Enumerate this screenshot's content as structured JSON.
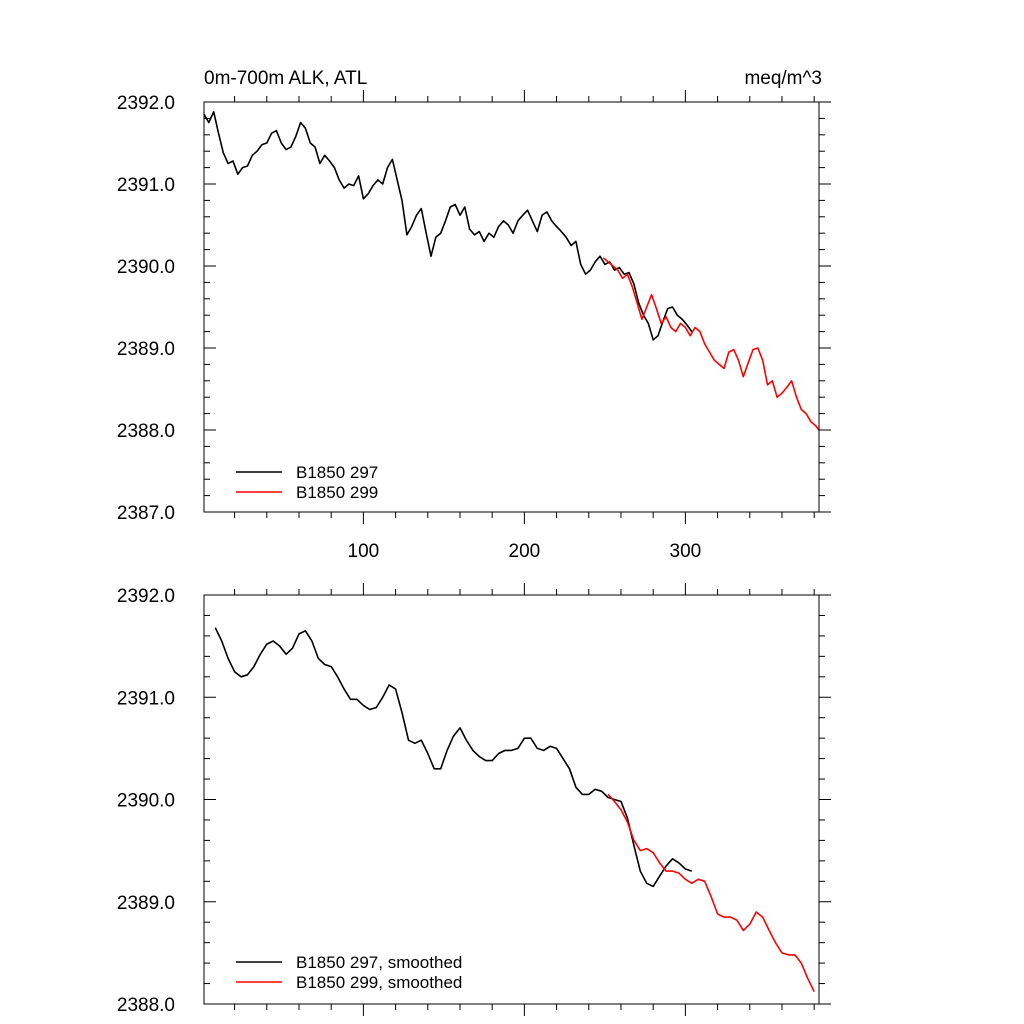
{
  "chart_data": [
    {
      "type": "line",
      "title_left": "0m-700m ALK, ATL",
      "title_right": "meq/m^3",
      "xlim": [
        1,
        383
      ],
      "ylim": [
        2387.0,
        2392.0
      ],
      "x_ticks": [
        100,
        200,
        300
      ],
      "x_tick_labels": [
        "100",
        "200",
        "300"
      ],
      "y_ticks": [
        2387,
        2388,
        2389,
        2390,
        2391,
        2392
      ],
      "y_tick_labels": [
        "2387.0",
        "2388.0",
        "2389.0",
        "2390.0",
        "2391.0",
        "2392.0"
      ],
      "legend": [
        "B1850 297",
        "B1850 299"
      ],
      "legend_position": "bottom-left",
      "series": [
        {
          "name": "B1850 297",
          "color": "#000000",
          "x": [
            1,
            4,
            7,
            10,
            13,
            16,
            19,
            22,
            25,
            28,
            31,
            34,
            37,
            40,
            43,
            46,
            49,
            52,
            55,
            58,
            61,
            64,
            67,
            70,
            73,
            76,
            79,
            82,
            85,
            88,
            91,
            94,
            97,
            100,
            103,
            106,
            109,
            112,
            115,
            118,
            121,
            124,
            127,
            130,
            133,
            136,
            139,
            142,
            145,
            148,
            151,
            154,
            157,
            160,
            163,
            166,
            169,
            172,
            175,
            178,
            181,
            184,
            187,
            190,
            193,
            196,
            199,
            202,
            205,
            208,
            211,
            214,
            217,
            220,
            223,
            226,
            229,
            232,
            235,
            238,
            241,
            244,
            247,
            250,
            253,
            256,
            259,
            262,
            265,
            268,
            271,
            274,
            277,
            280,
            283,
            286,
            289,
            292,
            295,
            298,
            301,
            304
          ],
          "y": [
            2391.85,
            2391.75,
            2391.88,
            2391.62,
            2391.38,
            2391.25,
            2391.28,
            2391.12,
            2391.2,
            2391.22,
            2391.35,
            2391.4,
            2391.48,
            2391.5,
            2391.62,
            2391.65,
            2391.5,
            2391.42,
            2391.45,
            2391.58,
            2391.75,
            2391.68,
            2391.5,
            2391.45,
            2391.25,
            2391.35,
            2391.28,
            2391.2,
            2391.05,
            2390.95,
            2391.0,
            2390.98,
            2391.1,
            2390.82,
            2390.88,
            2390.98,
            2391.05,
            2391.0,
            2391.2,
            2391.3,
            2391.05,
            2390.8,
            2390.38,
            2390.48,
            2390.62,
            2390.7,
            2390.4,
            2390.12,
            2390.35,
            2390.4,
            2390.55,
            2390.72,
            2390.75,
            2390.62,
            2390.72,
            2390.45,
            2390.38,
            2390.42,
            2390.3,
            2390.4,
            2390.35,
            2390.48,
            2390.55,
            2390.5,
            2390.4,
            2390.55,
            2390.62,
            2390.68,
            2390.55,
            2390.42,
            2390.62,
            2390.66,
            2390.55,
            2390.48,
            2390.42,
            2390.35,
            2390.25,
            2390.3,
            2390.02,
            2389.9,
            2389.95,
            2390.05,
            2390.12,
            2390.02,
            2390.05,
            2389.95,
            2389.98,
            2389.9,
            2389.92,
            2389.78,
            2389.55,
            2389.4,
            2389.3,
            2389.1,
            2389.15,
            2389.32,
            2389.48,
            2389.5,
            2389.4,
            2389.35,
            2389.28,
            2389.2
          ]
        },
        {
          "name": "B1850 299",
          "color": "#ff0000",
          "x": [
            249,
            252,
            255,
            258,
            261,
            264,
            267,
            270,
            273,
            276,
            279,
            282,
            285,
            288,
            291,
            294,
            297,
            300,
            303,
            306,
            309,
            312,
            315,
            318,
            321,
            324,
            327,
            330,
            333,
            336,
            339,
            342,
            345,
            348,
            351,
            354,
            357,
            360,
            363,
            366,
            369,
            372,
            375,
            378,
            381,
            383
          ],
          "y": [
            2390.1,
            2390.05,
            2390.0,
            2389.95,
            2389.85,
            2389.9,
            2389.75,
            2389.55,
            2389.35,
            2389.5,
            2389.65,
            2389.48,
            2389.3,
            2389.38,
            2389.25,
            2389.2,
            2389.3,
            2389.25,
            2389.15,
            2389.25,
            2389.2,
            2389.05,
            2388.95,
            2388.85,
            2388.8,
            2388.75,
            2388.95,
            2388.98,
            2388.85,
            2388.65,
            2388.82,
            2388.98,
            2389.0,
            2388.85,
            2388.55,
            2388.6,
            2388.4,
            2388.45,
            2388.52,
            2388.6,
            2388.4,
            2388.25,
            2388.2,
            2388.1,
            2388.05,
            2388.0
          ]
        }
      ]
    },
    {
      "type": "line",
      "xlim": [
        1,
        383
      ],
      "ylim": [
        2388.0,
        2392.0
      ],
      "x_ticks": [
        100,
        200,
        300
      ],
      "y_ticks": [
        2388,
        2389,
        2390,
        2391,
        2392
      ],
      "y_tick_labels": [
        "2388.0",
        "2389.0",
        "2390.0",
        "2391.0",
        "2392.0"
      ],
      "legend": [
        "B1850 297, smoothed",
        "B1850 299, smoothed"
      ],
      "legend_position": "bottom-left",
      "series": [
        {
          "name": "B1850 297, smoothed",
          "color": "#000000",
          "x": [
            8,
            12,
            16,
            20,
            24,
            28,
            32,
            36,
            40,
            44,
            48,
            52,
            56,
            60,
            64,
            68,
            72,
            76,
            80,
            84,
            88,
            92,
            96,
            100,
            104,
            108,
            112,
            116,
            120,
            124,
            128,
            132,
            136,
            140,
            144,
            148,
            152,
            156,
            160,
            164,
            168,
            172,
            176,
            180,
            184,
            188,
            192,
            196,
            200,
            204,
            208,
            212,
            216,
            220,
            224,
            228,
            232,
            236,
            240,
            244,
            248,
            252,
            256,
            260,
            264,
            268,
            272,
            276,
            280,
            284,
            288,
            292,
            296,
            300,
            304
          ],
          "y": [
            2391.68,
            2391.55,
            2391.38,
            2391.25,
            2391.2,
            2391.22,
            2391.3,
            2391.42,
            2391.52,
            2391.55,
            2391.5,
            2391.42,
            2391.48,
            2391.62,
            2391.65,
            2391.55,
            2391.38,
            2391.32,
            2391.3,
            2391.2,
            2391.08,
            2390.98,
            2390.98,
            2390.92,
            2390.88,
            2390.9,
            2391.0,
            2391.12,
            2391.08,
            2390.85,
            2390.58,
            2390.55,
            2390.58,
            2390.45,
            2390.3,
            2390.3,
            2390.48,
            2390.62,
            2390.7,
            2390.58,
            2390.48,
            2390.42,
            2390.38,
            2390.38,
            2390.45,
            2390.48,
            2390.48,
            2390.5,
            2390.6,
            2390.6,
            2390.5,
            2390.48,
            2390.52,
            2390.5,
            2390.4,
            2390.3,
            2390.12,
            2390.05,
            2390.05,
            2390.1,
            2390.08,
            2390.02,
            2390.0,
            2389.98,
            2389.82,
            2389.55,
            2389.3,
            2389.18,
            2389.15,
            2389.25,
            2389.35,
            2389.42,
            2389.38,
            2389.32,
            2389.3
          ]
        },
        {
          "name": "B1850 299, smoothed",
          "color": "#ff0000",
          "x": [
            252,
            256,
            260,
            264,
            268,
            272,
            276,
            280,
            284,
            288,
            292,
            296,
            300,
            304,
            308,
            312,
            316,
            320,
            324,
            328,
            332,
            336,
            340,
            344,
            348,
            352,
            356,
            360,
            364,
            368,
            372,
            376,
            380
          ],
          "y": [
            2390.05,
            2389.98,
            2389.9,
            2389.78,
            2389.6,
            2389.5,
            2389.52,
            2389.48,
            2389.38,
            2389.3,
            2389.3,
            2389.28,
            2389.22,
            2389.18,
            2389.22,
            2389.2,
            2389.05,
            2388.88,
            2388.85,
            2388.85,
            2388.82,
            2388.72,
            2388.78,
            2388.9,
            2388.85,
            2388.72,
            2388.6,
            2388.5,
            2388.48,
            2388.48,
            2388.4,
            2388.25,
            2388.12
          ]
        }
      ]
    }
  ]
}
